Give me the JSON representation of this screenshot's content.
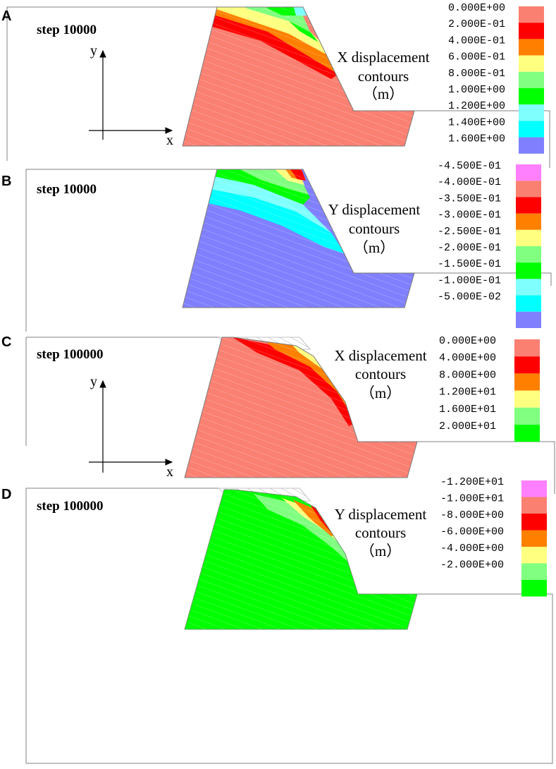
{
  "panels": [
    {
      "letter": "A",
      "step": "step 10000",
      "title": [
        "X displacement",
        "contours",
        "（m）"
      ],
      "has_axes": true,
      "axes": {
        "x": "x",
        "y": "y"
      },
      "legend": [
        {
          "label": "0.000E+00",
          "color": "#fa8072"
        },
        {
          "label": "2.000E-01",
          "color": "#ff0000"
        },
        {
          "label": "4.000E-01",
          "color": "#ff8000"
        },
        {
          "label": "6.000E-01",
          "color": "#ffff80"
        },
        {
          "label": "8.000E-01",
          "color": "#80ff80"
        },
        {
          "label": "1.000E+00",
          "color": "#00ff00"
        },
        {
          "label": "1.200E+00",
          "color": "#80ffff"
        },
        {
          "label": "1.400E+00",
          "color": "#00ffff"
        },
        {
          "label": "1.600E+00",
          "color": "#8080ff"
        }
      ]
    },
    {
      "letter": "B",
      "step": "step 10000",
      "title": [
        "Y displacement",
        "contours",
        "（m）"
      ],
      "has_axes": false,
      "legend": [
        {
          "label": "-4.500E-01",
          "color": "#ff80ff"
        },
        {
          "label": "-4.000E-01",
          "color": "#fa8072"
        },
        {
          "label": "-3.500E-01",
          "color": "#ff0000"
        },
        {
          "label": "-3.000E-01",
          "color": "#ff8000"
        },
        {
          "label": "-2.500E-01",
          "color": "#ffff80"
        },
        {
          "label": "-2.000E-01",
          "color": "#80ff80"
        },
        {
          "label": "-1.500E-01",
          "color": "#00ff00"
        },
        {
          "label": "-1.000E-01",
          "color": "#80ffff"
        },
        {
          "label": "-5.000E-02",
          "color": "#00ffff"
        },
        {
          "label": "",
          "color": "#8080ff"
        }
      ]
    },
    {
      "letter": "C",
      "step": "step 100000",
      "title": [
        "X displacement",
        "contours",
        "（m）"
      ],
      "has_axes": true,
      "axes": {
        "x": "x",
        "y": "y"
      },
      "legend": [
        {
          "label": "0.000E+00",
          "color": "#fa8072"
        },
        {
          "label": "4.000E+00",
          "color": "#ff0000"
        },
        {
          "label": "8.000E+00",
          "color": "#ff8000"
        },
        {
          "label": "1.200E+01",
          "color": "#ffff80"
        },
        {
          "label": "1.600E+01",
          "color": "#80ff80"
        },
        {
          "label": "2.000E+01",
          "color": "#00ff00"
        }
      ]
    },
    {
      "letter": "D",
      "step": "step 100000",
      "title": [
        "Y displacement",
        "contours",
        "（m）"
      ],
      "has_axes": false,
      "legend": [
        {
          "label": "-1.200E+01",
          "color": "#ff80ff"
        },
        {
          "label": "-1.000E+01",
          "color": "#fa8072"
        },
        {
          "label": "-8.000E+00",
          "color": "#ff0000"
        },
        {
          "label": "-6.000E+00",
          "color": "#ff8000"
        },
        {
          "label": "-4.000E+00",
          "color": "#ffff80"
        },
        {
          "label": "-2.000E+00",
          "color": "#80ff80"
        },
        {
          "label": "",
          "color": "#00ff00"
        }
      ]
    }
  ]
}
